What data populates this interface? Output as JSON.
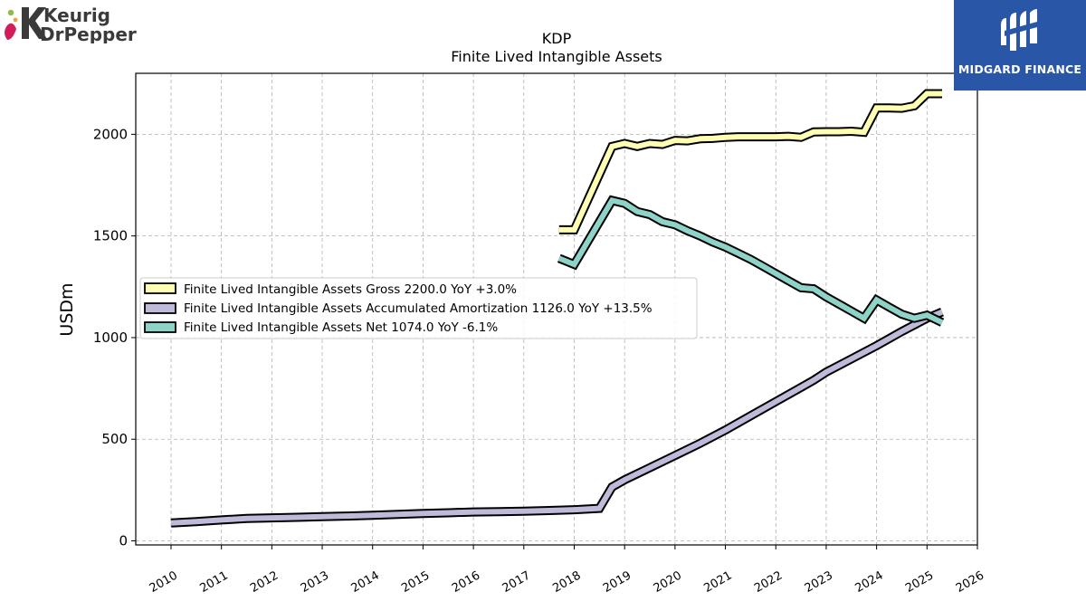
{
  "logos": {
    "left_text_line1": "Keurig",
    "left_text_line2": "DrPepper",
    "right_text": "MIDGARD FINANCE"
  },
  "colors": {
    "gross": "#ffffb3",
    "amortization": "#bebada",
    "net": "#8dd3c7",
    "outline": "#000000",
    "midgard_blue": "#2a56a8"
  },
  "chart_data": {
    "type": "line",
    "title": "KDP",
    "subtitle": "Finite Lived Intangible Assets",
    "ylabel": "USDm",
    "xlabel": "",
    "xlim": [
      2009.3,
      2026.0
    ],
    "ylim": [
      -20,
      2300
    ],
    "yticks": [
      0,
      500,
      1000,
      1500,
      2000
    ],
    "xticks": [
      "2010",
      "2011",
      "2012",
      "2013",
      "2014",
      "2015",
      "2016",
      "2017",
      "2018",
      "2019",
      "2020",
      "2021",
      "2022",
      "2023",
      "2024",
      "2025",
      "2026"
    ],
    "grid": true,
    "legend_position": "center-left",
    "series": [
      {
        "name": "Finite Lived Intangible Assets Gross",
        "legend": "Finite Lived Intangible Assets Gross  2200.0 YoY +3.0%",
        "color": "#ffffb3",
        "x": [
          2017.7,
          2018.0,
          2018.75,
          2019.0,
          2019.25,
          2019.5,
          2019.75,
          2020.0,
          2020.25,
          2020.5,
          2020.75,
          2021.0,
          2021.25,
          2021.5,
          2021.75,
          2022.0,
          2022.25,
          2022.5,
          2022.75,
          2023.0,
          2023.25,
          2023.5,
          2023.75,
          2024.0,
          2024.25,
          2024.5,
          2024.75,
          2025.0,
          2025.3
        ],
        "y": [
          1530,
          1530,
          1940,
          1955,
          1940,
          1955,
          1950,
          1970,
          1968,
          1978,
          1980,
          1985,
          1988,
          1988,
          1988,
          1988,
          1990,
          1985,
          2012,
          2013,
          2013,
          2015,
          2010,
          2130,
          2130,
          2128,
          2140,
          2200,
          2200
        ]
      },
      {
        "name": "Finite Lived Intangible Assets Accumulated Amortization",
        "legend": "Finite Lived Intangible Assets Accumulated Amortization  1126.0 YoY +13.5%",
        "color": "#bebada",
        "x": [
          2010.0,
          2010.5,
          2011.0,
          2011.5,
          2012.0,
          2012.5,
          2013.0,
          2013.5,
          2014.0,
          2014.5,
          2015.0,
          2015.5,
          2016.0,
          2016.5,
          2017.0,
          2017.5,
          2018.0,
          2018.5,
          2018.75,
          2019.0,
          2019.5,
          2020.0,
          2020.5,
          2021.0,
          2021.5,
          2022.0,
          2022.5,
          2022.75,
          2023.0,
          2023.5,
          2024.0,
          2024.5,
          2025.0,
          2025.3
        ],
        "y": [
          88,
          95,
          103,
          110,
          113,
          116,
          119,
          122,
          126,
          130,
          135,
          138,
          142,
          144,
          146,
          149,
          153,
          160,
          265,
          300,
          360,
          420,
          480,
          545,
          615,
          685,
          755,
          790,
          830,
          895,
          960,
          1030,
          1095,
          1126
        ]
      },
      {
        "name": "Finite Lived Intangible Assets Net",
        "legend": "Finite Lived Intangible Assets Net  1074.0 YoY -6.1%",
        "color": "#8dd3c7",
        "x": [
          2017.7,
          2018.0,
          2018.75,
          2019.0,
          2019.25,
          2019.5,
          2019.75,
          2020.0,
          2020.25,
          2020.5,
          2020.75,
          2021.0,
          2021.25,
          2021.5,
          2021.75,
          2022.0,
          2022.25,
          2022.5,
          2022.75,
          2023.0,
          2023.25,
          2023.5,
          2023.75,
          2024.0,
          2024.25,
          2024.5,
          2024.75,
          2025.0,
          2025.3
        ],
        "y": [
          1390,
          1360,
          1675,
          1660,
          1620,
          1605,
          1570,
          1555,
          1525,
          1500,
          1470,
          1445,
          1415,
          1385,
          1350,
          1315,
          1280,
          1245,
          1240,
          1200,
          1165,
          1130,
          1095,
          1185,
          1150,
          1115,
          1095,
          1110,
          1074
        ]
      }
    ]
  }
}
